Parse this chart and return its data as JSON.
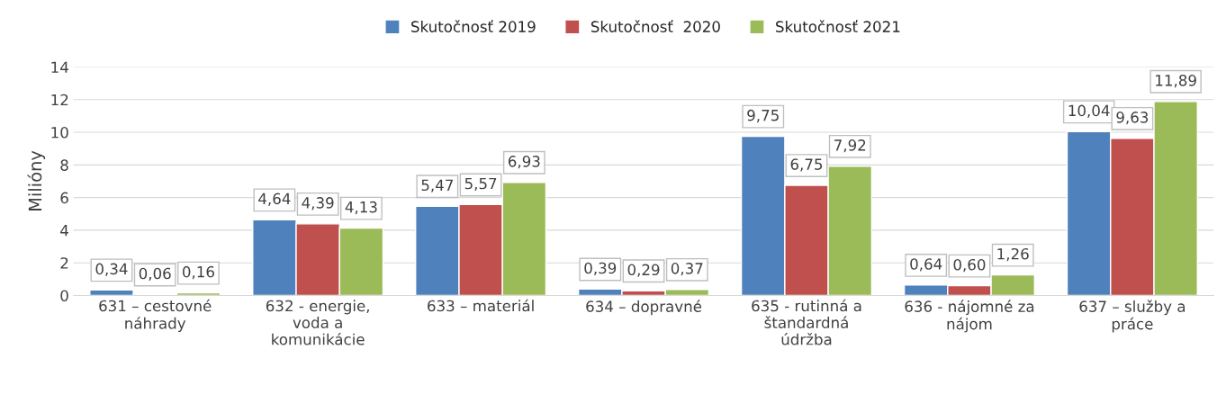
{
  "chart_data": {
    "type": "bar",
    "categories": [
      "631 – cestovné náhrady",
      "632 - energie, voda a komunikácie",
      "633 – materiál",
      "634 – dopravné",
      "635 - rutinná a štandardná údržba",
      "636 - nájomné za nájom",
      "637 – služby a práce"
    ],
    "series": [
      {
        "name": "Skutočnosť 2019",
        "color": "#4f81bd",
        "values": [
          0.34,
          4.64,
          5.47,
          0.39,
          9.75,
          0.64,
          10.04
        ],
        "value_labels": [
          "0,34",
          "4,64",
          "5,47",
          "0,39",
          "9,75",
          "0,64",
          "10,04"
        ]
      },
      {
        "name": "Skutočnosť  2020",
        "color": "#c0504d",
        "values": [
          0.06,
          4.39,
          5.57,
          0.29,
          6.75,
          0.6,
          9.63
        ],
        "value_labels": [
          "0,06",
          "4,39",
          "5,57",
          "0,29",
          "6,75",
          "0,60",
          "9,63"
        ]
      },
      {
        "name": "Skutočnosť 2021",
        "color": "#9bbb59",
        "values": [
          0.16,
          4.13,
          6.93,
          0.37,
          7.92,
          1.26,
          11.89
        ],
        "value_labels": [
          "0,16",
          "4,13",
          "6,93",
          "0,37",
          "7,92",
          "1,26",
          "11,89"
        ]
      }
    ],
    "ylabel": "Milióny",
    "ylim": [
      0,
      14
    ],
    "yticks": [
      0,
      2,
      4,
      6,
      8,
      10,
      12,
      14
    ],
    "grid": "y",
    "legend": "top"
  }
}
